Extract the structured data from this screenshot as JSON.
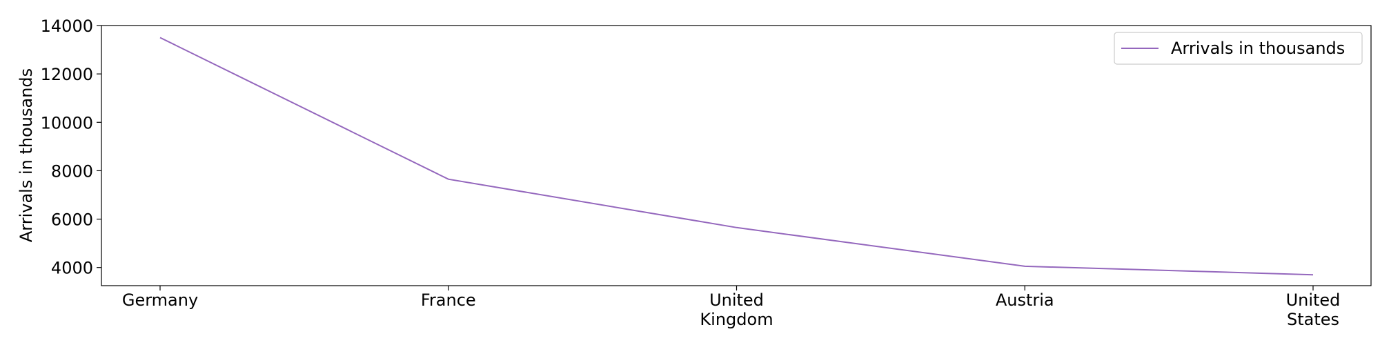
{
  "chart_data": {
    "type": "line",
    "title": "",
    "xlabel": "",
    "ylabel": "Arrivals in thousands",
    "categories": [
      "Germany",
      "France",
      "United Kingdom",
      "Austria",
      "United States"
    ],
    "category_lines": [
      [
        "Germany"
      ],
      [
        "France"
      ],
      [
        "United",
        "Kingdom"
      ],
      [
        "Austria"
      ],
      [
        "United",
        "States"
      ]
    ],
    "series": [
      {
        "name": "Arrivals in thousands",
        "values": [
          13500,
          7650,
          5650,
          4050,
          3700
        ],
        "color": "#9467bd"
      }
    ],
    "ylim": [
      3250,
      14000
    ],
    "yticks": [
      4000,
      6000,
      8000,
      10000,
      12000,
      14000
    ],
    "ytick_labels": [
      "4000",
      "6000",
      "8000",
      "10000",
      "12000",
      "14000"
    ],
    "grid": false,
    "legend": "top-right"
  }
}
